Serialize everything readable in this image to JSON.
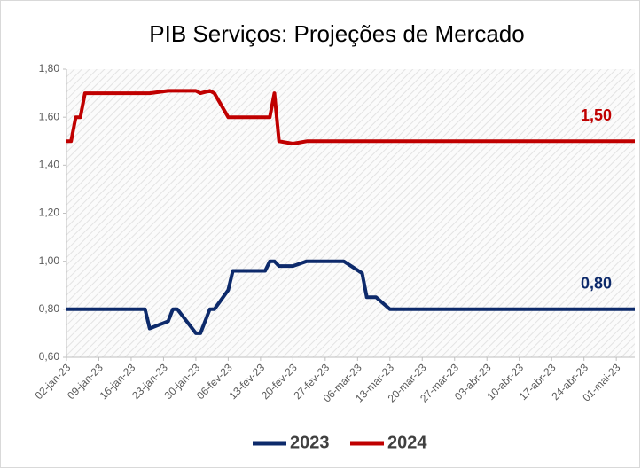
{
  "chart_data": {
    "type": "line",
    "title": "PIB Serviços: Projeções de Mercado",
    "x": [
      "2023-01-02",
      "2023-01-03",
      "2023-01-04",
      "2023-01-05",
      "2023-01-06",
      "2023-01-09",
      "2023-01-13",
      "2023-01-19",
      "2023-01-20",
      "2023-01-24",
      "2023-01-25",
      "2023-01-26",
      "2023-01-30",
      "2023-01-31",
      "2023-02-02",
      "2023-02-03",
      "2023-02-06",
      "2023-02-07",
      "2023-02-14",
      "2023-02-15",
      "2023-02-16",
      "2023-02-17",
      "2023-02-20",
      "2023-02-23",
      "2023-03-03",
      "2023-03-07",
      "2023-03-08",
      "2023-03-10",
      "2023-03-13",
      "2023-05-05"
    ],
    "series": [
      {
        "name": "2023",
        "color": "#0d2a6b",
        "values": [
          0.8,
          0.8,
          0.8,
          0.8,
          0.8,
          0.8,
          0.8,
          0.8,
          0.72,
          0.75,
          0.8,
          0.8,
          0.7,
          0.7,
          0.8,
          0.8,
          0.88,
          0.96,
          0.96,
          1.0,
          1.0,
          0.98,
          0.98,
          1.0,
          1.0,
          0.95,
          0.85,
          0.85,
          0.8,
          0.8
        ],
        "value_labels": [
          null,
          null,
          null,
          null,
          null,
          null,
          null,
          null,
          null,
          null,
          null,
          null,
          null,
          null,
          null,
          null,
          null,
          null,
          null,
          null,
          null,
          null,
          null,
          null,
          null,
          null,
          null,
          null,
          null,
          "0,80"
        ]
      },
      {
        "name": "2024",
        "color": "#c00000",
        "values": [
          1.5,
          1.5,
          1.6,
          1.6,
          1.7,
          1.7,
          1.7,
          1.7,
          1.7,
          1.71,
          1.71,
          1.71,
          1.71,
          1.7,
          1.71,
          1.7,
          1.6,
          1.6,
          1.6,
          1.6,
          1.7,
          1.5,
          1.49,
          1.5,
          1.5,
          1.5,
          1.5,
          1.5,
          1.5,
          1.5
        ],
        "value_labels": [
          null,
          null,
          null,
          null,
          null,
          null,
          null,
          null,
          null,
          null,
          null,
          null,
          null,
          null,
          null,
          null,
          null,
          null,
          null,
          null,
          null,
          null,
          null,
          null,
          null,
          null,
          null,
          null,
          null,
          "1,50"
        ]
      }
    ],
    "xlim": [
      "2023-01-02",
      "2023-05-05"
    ],
    "xticks": [
      {
        "value": "2023-01-02",
        "label": "02-jan-23"
      },
      {
        "value": "2023-01-09",
        "label": "09-jan-23"
      },
      {
        "value": "2023-01-16",
        "label": "16-jan-23"
      },
      {
        "value": "2023-01-23",
        "label": "23-jan-23"
      },
      {
        "value": "2023-01-30",
        "label": "30-jan-23"
      },
      {
        "value": "2023-02-06",
        "label": "06-fev-23"
      },
      {
        "value": "2023-02-13",
        "label": "13-fev-23"
      },
      {
        "value": "2023-02-20",
        "label": "20-fev-23"
      },
      {
        "value": "2023-02-27",
        "label": "27-fev-23"
      },
      {
        "value": "2023-03-06",
        "label": "06-mar-23"
      },
      {
        "value": "2023-03-13",
        "label": "13-mar-23"
      },
      {
        "value": "2023-03-20",
        "label": "20-mar-23"
      },
      {
        "value": "2023-03-27",
        "label": "27-mar-23"
      },
      {
        "value": "2023-04-03",
        "label": "03-abr-23"
      },
      {
        "value": "2023-04-10",
        "label": "10-abr-23"
      },
      {
        "value": "2023-04-17",
        "label": "17-abr-23"
      },
      {
        "value": "2023-04-24",
        "label": "24-abr-23"
      },
      {
        "value": "2023-05-01",
        "label": "01-mai-23"
      }
    ],
    "ylim": [
      0.6,
      1.8
    ],
    "yticks": [
      {
        "value": 0.6,
        "label": "0,60"
      },
      {
        "value": 0.8,
        "label": "0,80"
      },
      {
        "value": 1.0,
        "label": "1,00"
      },
      {
        "value": 1.2,
        "label": "1,20"
      },
      {
        "value": 1.4,
        "label": "1,40"
      },
      {
        "value": 1.6,
        "label": "1,60"
      },
      {
        "value": 1.8,
        "label": "1,80"
      }
    ],
    "legend": "bottom"
  }
}
